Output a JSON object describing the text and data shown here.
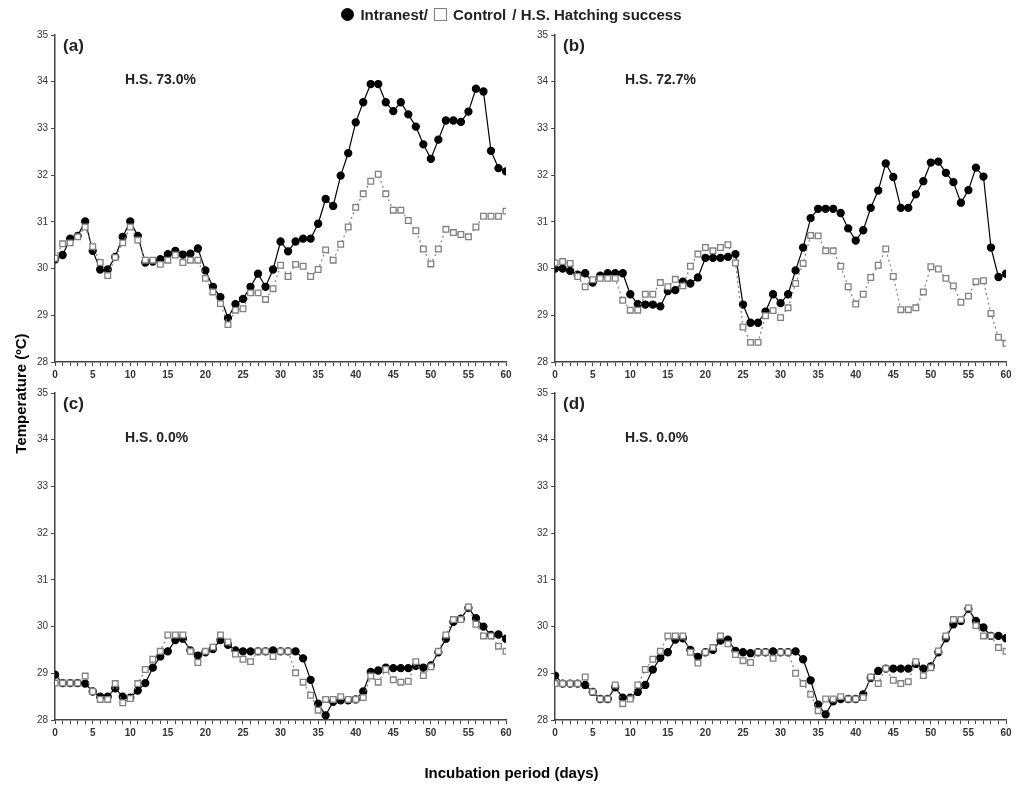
{
  "chart_data": [
    {
      "type": "line",
      "legend": "top",
      "legend_title": "/ H.S. Hatching success",
      "ylabel": "Temperature (ºC)",
      "annotations": [
        "(a)",
        "H.S. 73.0%"
      ],
      "xlim": [
        0,
        60
      ],
      "ylim": [
        28,
        35
      ],
      "yticks": [
        28,
        29,
        30,
        31,
        32,
        33,
        34,
        35
      ],
      "xticks": [
        0,
        {
          "value": 1,
          "label": null
        },
        {
          "value": 2,
          "label": null
        },
        {
          "value": 3,
          "label": null
        },
        {
          "value": 4,
          "label": null
        },
        5,
        {
          "value": 6,
          "label": null
        },
        {
          "value": 7,
          "label": null
        },
        {
          "value": 8,
          "label": null
        },
        {
          "value": 9,
          "label": null
        },
        10,
        {
          "value": 11,
          "label": null
        },
        {
          "value": 12,
          "label": null
        },
        {
          "value": 13,
          "label": null
        },
        {
          "value": 14,
          "label": null
        },
        15,
        {
          "value": 16,
          "label": null
        },
        {
          "value": 17,
          "label": null
        },
        {
          "value": 18,
          "label": null
        },
        {
          "value": 19,
          "label": null
        },
        20,
        {
          "value": 21,
          "label": null
        },
        {
          "value": 22,
          "label": null
        },
        {
          "value": 23,
          "label": null
        },
        {
          "value": 24,
          "label": null
        },
        25,
        {
          "value": 26,
          "label": null
        },
        {
          "value": 27,
          "label": null
        },
        {
          "value": 28,
          "label": null
        },
        {
          "value": 29,
          "label": null
        },
        30,
        {
          "value": 31,
          "label": null
        },
        {
          "value": 32,
          "label": null
        },
        {
          "value": 33,
          "label": null
        },
        {
          "value": 34,
          "label": null
        },
        35,
        {
          "value": 36,
          "label": null
        },
        {
          "value": 37,
          "label": null
        },
        {
          "value": 38,
          "label": null
        },
        {
          "value": 39,
          "label": null
        },
        40,
        {
          "value": 41,
          "label": null
        },
        {
          "value": 42,
          "label": null
        },
        {
          "value": 43,
          "label": null
        },
        {
          "value": 44,
          "label": null
        },
        45,
        {
          "value": 46,
          "label": null
        },
        {
          "value": 47,
          "label": null
        },
        {
          "value": 48,
          "label": null
        },
        {
          "value": 49,
          "label": null
        },
        50,
        {
          "value": 51,
          "label": null
        },
        {
          "value": 52,
          "label": null
        },
        {
          "value": 53,
          "label": null
        },
        {
          "value": 54,
          "label": null
        },
        55,
        {
          "value": 56,
          "label": null
        },
        {
          "value": 57,
          "label": null
        },
        {
          "value": 58,
          "label": null
        },
        {
          "value": 59,
          "label": null
        },
        60
      ],
      "x": [
        0,
        1,
        2,
        3,
        4,
        5,
        6,
        7,
        8,
        9,
        10,
        11,
        12,
        13,
        14,
        15,
        16,
        17,
        18,
        19,
        20,
        21,
        22,
        23,
        24,
        25,
        26,
        27,
        28,
        29,
        30,
        31,
        32,
        33,
        34,
        35,
        36,
        37,
        38,
        39,
        40,
        41,
        42,
        43,
        44,
        45,
        46,
        47,
        48,
        49,
        50,
        51,
        52,
        53,
        54,
        55,
        56,
        57,
        58,
        59,
        60
      ],
      "series": [
        {
          "name": "Intranest/",
          "color": "#000000",
          "marker": "circle",
          "line_style": "solid",
          "values": [
            30.2,
            30.29,
            30.64,
            30.7,
            31.01,
            30.38,
            29.98,
            29.98,
            30.25,
            30.68,
            31.01,
            30.7,
            30.13,
            30.15,
            30.2,
            30.31,
            30.38,
            30.3,
            30.32,
            30.43,
            29.96,
            29.61,
            29.39,
            28.94,
            29.24,
            29.35,
            29.61,
            29.89,
            29.61,
            29.98,
            30.58,
            30.37,
            30.58,
            30.64,
            30.64,
            30.96,
            31.49,
            31.34,
            31.99,
            32.47,
            33.13,
            33.56,
            33.95,
            33.95,
            33.56,
            33.37,
            33.56,
            33.3,
            33.04,
            32.66,
            32.35,
            32.76,
            33.17,
            33.17,
            33.14,
            33.36,
            33.85,
            33.79,
            32.52,
            32.15,
            32.08
          ]
        },
        {
          "name": "Control",
          "color": "#808080",
          "marker": "square",
          "line_style": "dotted",
          "values": [
            30.22,
            30.53,
            30.55,
            30.68,
            30.89,
            30.47,
            30.13,
            29.85,
            30.24,
            30.55,
            30.89,
            30.61,
            30.18,
            30.18,
            30.09,
            30.18,
            30.29,
            30.13,
            30.18,
            30.18,
            29.79,
            29.5,
            29.25,
            28.8,
            29.11,
            29.14,
            29.48,
            29.48,
            29.34,
            29.57,
            30.07,
            29.83,
            30.09,
            30.05,
            29.83,
            29.98,
            30.4,
            30.18,
            30.52,
            30.89,
            31.31,
            31.6,
            31.87,
            32.02,
            31.6,
            31.25,
            31.25,
            31.03,
            30.81,
            30.42,
            30.1,
            30.42,
            30.84,
            30.77,
            30.73,
            30.68,
            30.89,
            31.12,
            31.12,
            31.12,
            31.23
          ]
        }
      ]
    },
    {
      "type": "line",
      "annotations": [
        "(b)",
        "H.S. 72.7%"
      ],
      "xlim": [
        0,
        60
      ],
      "ylim": [
        28,
        35
      ],
      "yticks": [
        28,
        29,
        30,
        31,
        32,
        33,
        34,
        35
      ],
      "xticks": [
        0,
        {
          "value": 1,
          "label": null
        },
        {
          "value": 2,
          "label": null
        },
        {
          "value": 3,
          "label": null
        },
        {
          "value": 4,
          "label": null
        },
        5,
        {
          "value": 6,
          "label": null
        },
        {
          "value": 7,
          "label": null
        },
        {
          "value": 8,
          "label": null
        },
        {
          "value": 9,
          "label": null
        },
        10,
        {
          "value": 11,
          "label": null
        },
        {
          "value": 12,
          "label": null
        },
        {
          "value": 13,
          "label": null
        },
        {
          "value": 14,
          "label": null
        },
        15,
        {
          "value": 16,
          "label": null
        },
        {
          "value": 17,
          "label": null
        },
        {
          "value": 18,
          "label": null
        },
        {
          "value": 19,
          "label": null
        },
        20,
        {
          "value": 21,
          "label": null
        },
        {
          "value": 22,
          "label": null
        },
        {
          "value": 23,
          "label": null
        },
        {
          "value": 24,
          "label": null
        },
        25,
        {
          "value": 26,
          "label": null
        },
        {
          "value": 27,
          "label": null
        },
        {
          "value": 28,
          "label": null
        },
        {
          "value": 29,
          "label": null
        },
        30,
        {
          "value": 31,
          "label": null
        },
        {
          "value": 32,
          "label": null
        },
        {
          "value": 33,
          "label": null
        },
        {
          "value": 34,
          "label": null
        },
        35,
        {
          "value": 36,
          "label": null
        },
        {
          "value": 37,
          "label": null
        },
        {
          "value": 38,
          "label": null
        },
        {
          "value": 39,
          "label": null
        },
        40,
        {
          "value": 41,
          "label": null
        },
        {
          "value": 42,
          "label": null
        },
        {
          "value": 43,
          "label": null
        },
        {
          "value": 44,
          "label": null
        },
        45,
        {
          "value": 46,
          "label": null
        },
        {
          "value": 47,
          "label": null
        },
        {
          "value": 48,
          "label": null
        },
        {
          "value": 49,
          "label": null
        },
        50,
        {
          "value": 51,
          "label": null
        },
        {
          "value": 52,
          "label": null
        },
        {
          "value": 53,
          "label": null
        },
        {
          "value": 54,
          "label": null
        },
        55,
        {
          "value": 56,
          "label": null
        },
        {
          "value": 57,
          "label": null
        },
        {
          "value": 58,
          "label": null
        },
        {
          "value": 59,
          "label": null
        },
        60
      ],
      "x": [
        0,
        1,
        2,
        3,
        4,
        5,
        6,
        7,
        8,
        9,
        10,
        11,
        12,
        13,
        14,
        15,
        16,
        17,
        18,
        19,
        20,
        21,
        22,
        23,
        24,
        25,
        26,
        27,
        28,
        29,
        30,
        31,
        32,
        33,
        34,
        35,
        36,
        37,
        38,
        39,
        40,
        41,
        42,
        43,
        44,
        45,
        46,
        47,
        48,
        49,
        50,
        51,
        52,
        53,
        54,
        55,
        56,
        57,
        58,
        59,
        60
      ],
      "series": [
        {
          "color": "#000000",
          "marker": "circle",
          "line_style": "solid",
          "values": [
            30.0,
            30.0,
            29.95,
            29.87,
            29.9,
            29.7,
            29.85,
            29.9,
            29.9,
            29.9,
            29.45,
            29.24,
            29.23,
            29.23,
            29.19,
            29.52,
            29.54,
            29.72,
            29.68,
            29.81,
            30.23,
            30.23,
            30.23,
            30.25,
            30.31,
            29.23,
            28.84,
            28.84,
            29.08,
            29.45,
            29.26,
            29.45,
            29.96,
            30.45,
            31.08,
            31.28,
            31.28,
            31.28,
            31.19,
            30.86,
            30.6,
            30.82,
            31.3,
            31.67,
            32.25,
            31.96,
            31.3,
            31.3,
            31.59,
            31.87,
            32.27,
            32.29,
            32.05,
            31.85,
            31.41,
            31.68,
            32.16,
            31.97,
            30.45,
            29.82,
            29.89
          ]
        },
        {
          "color": "#808080",
          "marker": "square",
          "line_style": "dotted",
          "values": [
            30.12,
            30.15,
            30.11,
            29.83,
            29.61,
            29.76,
            29.79,
            29.79,
            29.79,
            29.32,
            29.11,
            29.11,
            29.45,
            29.45,
            29.7,
            29.61,
            29.77,
            29.63,
            30.05,
            30.31,
            30.45,
            30.38,
            30.45,
            30.51,
            30.12,
            28.75,
            28.42,
            28.42,
            28.99,
            29.1,
            28.95,
            29.16,
            29.68,
            30.11,
            30.71,
            30.7,
            30.38,
            30.38,
            30.05,
            29.61,
            29.24,
            29.45,
            29.81,
            30.07,
            30.42,
            29.83,
            29.12,
            29.12,
            29.16,
            29.5,
            30.04,
            29.99,
            29.79,
            29.63,
            29.28,
            29.41,
            29.72,
            29.74,
            29.04,
            28.53,
            28.4
          ]
        }
      ]
    },
    {
      "type": "line",
      "xlabel": "Incubation period (days)",
      "annotations": [
        "(c)",
        "H.S. 0.0%"
      ],
      "xlim": [
        0,
        60
      ],
      "ylim": [
        28,
        35
      ],
      "yticks": [
        28,
        29,
        30,
        31,
        32,
        33,
        34,
        35
      ],
      "xticks": [
        0,
        {
          "value": 1,
          "label": null
        },
        {
          "value": 2,
          "label": null
        },
        {
          "value": 3,
          "label": null
        },
        {
          "value": 4,
          "label": null
        },
        5,
        {
          "value": 6,
          "label": null
        },
        {
          "value": 7,
          "label": null
        },
        {
          "value": 8,
          "label": null
        },
        {
          "value": 9,
          "label": null
        },
        10,
        {
          "value": 11,
          "label": null
        },
        {
          "value": 12,
          "label": null
        },
        {
          "value": 13,
          "label": null
        },
        {
          "value": 14,
          "label": null
        },
        15,
        {
          "value": 16,
          "label": null
        },
        {
          "value": 17,
          "label": null
        },
        {
          "value": 18,
          "label": null
        },
        {
          "value": 19,
          "label": null
        },
        20,
        {
          "value": 21,
          "label": null
        },
        {
          "value": 22,
          "label": null
        },
        {
          "value": 23,
          "label": null
        },
        {
          "value": 24,
          "label": null
        },
        25,
        {
          "value": 26,
          "label": null
        },
        {
          "value": 27,
          "label": null
        },
        {
          "value": 28,
          "label": null
        },
        {
          "value": 29,
          "label": null
        },
        30,
        {
          "value": 31,
          "label": null
        },
        {
          "value": 32,
          "label": null
        },
        {
          "value": 33,
          "label": null
        },
        {
          "value": 34,
          "label": null
        },
        35,
        {
          "value": 36,
          "label": null
        },
        {
          "value": 37,
          "label": null
        },
        {
          "value": 38,
          "label": null
        },
        {
          "value": 39,
          "label": null
        },
        40,
        {
          "value": 41,
          "label": null
        },
        {
          "value": 42,
          "label": null
        },
        {
          "value": 43,
          "label": null
        },
        {
          "value": 44,
          "label": null
        },
        45,
        {
          "value": 46,
          "label": null
        },
        {
          "value": 47,
          "label": null
        },
        {
          "value": 48,
          "label": null
        },
        {
          "value": 49,
          "label": null
        },
        50,
        {
          "value": 51,
          "label": null
        },
        {
          "value": 52,
          "label": null
        },
        {
          "value": 53,
          "label": null
        },
        {
          "value": 54,
          "label": null
        },
        55,
        {
          "value": 56,
          "label": null
        },
        {
          "value": 57,
          "label": null
        },
        {
          "value": 58,
          "label": null
        },
        {
          "value": 59,
          "label": null
        },
        60
      ],
      "x": [
        0,
        1,
        2,
        3,
        4,
        5,
        6,
        7,
        8,
        9,
        10,
        11,
        12,
        13,
        14,
        15,
        16,
        17,
        18,
        19,
        20,
        21,
        22,
        23,
        24,
        25,
        26,
        27,
        28,
        29,
        30,
        31,
        32,
        33,
        34,
        35,
        36,
        37,
        38,
        39,
        40,
        41,
        42,
        43,
        44,
        45,
        46,
        47,
        48,
        49,
        50,
        51,
        52,
        53,
        54,
        55,
        56,
        57,
        58,
        59,
        60
      ],
      "series": [
        {
          "color": "#000000",
          "marker": "circle",
          "line_style": "solid",
          "values": [
            28.97,
            28.79,
            28.79,
            28.79,
            28.78,
            28.61,
            28.5,
            28.5,
            28.68,
            28.5,
            28.48,
            28.63,
            28.79,
            29.12,
            29.36,
            29.47,
            29.71,
            29.74,
            29.49,
            29.38,
            29.45,
            29.52,
            29.71,
            29.61,
            29.49,
            29.47,
            29.47,
            29.47,
            29.47,
            29.49,
            29.47,
            29.47,
            29.47,
            29.32,
            28.86,
            28.35,
            28.1,
            28.39,
            28.42,
            28.42,
            28.44,
            28.61,
            29.03,
            29.06,
            29.12,
            29.11,
            29.11,
            29.11,
            29.16,
            29.12,
            29.17,
            29.45,
            29.74,
            30.1,
            30.17,
            30.4,
            30.18,
            30.0,
            29.82,
            29.83,
            29.74
          ]
        },
        {
          "color": "#808080",
          "marker": "square",
          "line_style": "dotted",
          "values": [
            28.79,
            28.79,
            28.79,
            28.79,
            28.94,
            28.61,
            28.44,
            28.44,
            28.78,
            28.37,
            28.46,
            28.78,
            29.08,
            29.3,
            29.47,
            29.82,
            29.82,
            29.82,
            29.47,
            29.23,
            29.47,
            29.56,
            29.82,
            29.67,
            29.41,
            29.3,
            29.25,
            29.47,
            29.47,
            29.36,
            29.47,
            29.47,
            29.01,
            28.81,
            28.53,
            28.21,
            28.44,
            28.44,
            28.5,
            28.44,
            28.44,
            28.48,
            28.94,
            28.81,
            29.08,
            28.86,
            28.81,
            28.83,
            29.25,
            28.95,
            29.14,
            29.47,
            29.82,
            30.15,
            30.15,
            30.42,
            30.05,
            29.8,
            29.8,
            29.58,
            29.47
          ]
        }
      ]
    },
    {
      "type": "line",
      "annotations": [
        "(d)",
        "H.S. 0.0%"
      ],
      "xlim": [
        0,
        60
      ],
      "ylim": [
        28,
        35
      ],
      "yticks": [
        28,
        29,
        30,
        31,
        32,
        33,
        34,
        35
      ],
      "xticks": [
        0,
        {
          "value": 1,
          "label": null
        },
        {
          "value": 2,
          "label": null
        },
        {
          "value": 3,
          "label": null
        },
        {
          "value": 4,
          "label": null
        },
        5,
        {
          "value": 6,
          "label": null
        },
        {
          "value": 7,
          "label": null
        },
        {
          "value": 8,
          "label": null
        },
        {
          "value": 9,
          "label": null
        },
        10,
        {
          "value": 11,
          "label": null
        },
        {
          "value": 12,
          "label": null
        },
        {
          "value": 13,
          "label": null
        },
        {
          "value": 14,
          "label": null
        },
        15,
        {
          "value": 16,
          "label": null
        },
        {
          "value": 17,
          "label": null
        },
        {
          "value": 18,
          "label": null
        },
        {
          "value": 19,
          "label": null
        },
        20,
        {
          "value": 21,
          "label": null
        },
        {
          "value": 22,
          "label": null
        },
        {
          "value": 23,
          "label": null
        },
        {
          "value": 24,
          "label": null
        },
        25,
        {
          "value": 26,
          "label": null
        },
        {
          "value": 27,
          "label": null
        },
        {
          "value": 28,
          "label": null
        },
        {
          "value": 29,
          "label": null
        },
        30,
        {
          "value": 31,
          "label": null
        },
        {
          "value": 32,
          "label": null
        },
        {
          "value": 33,
          "label": null
        },
        {
          "value": 34,
          "label": null
        },
        35,
        {
          "value": 36,
          "label": null
        },
        {
          "value": 37,
          "label": null
        },
        {
          "value": 38,
          "label": null
        },
        {
          "value": 39,
          "label": null
        },
        40,
        {
          "value": 41,
          "label": null
        },
        {
          "value": 42,
          "label": null
        },
        {
          "value": 43,
          "label": null
        },
        {
          "value": 44,
          "label": null
        },
        45,
        {
          "value": 46,
          "label": null
        },
        {
          "value": 47,
          "label": null
        },
        {
          "value": 48,
          "label": null
        },
        {
          "value": 49,
          "label": null
        },
        50,
        {
          "value": 51,
          "label": null
        },
        {
          "value": 52,
          "label": null
        },
        {
          "value": 53,
          "label": null
        },
        {
          "value": 54,
          "label": null
        },
        55,
        {
          "value": 56,
          "label": null
        },
        {
          "value": 57,
          "label": null
        },
        {
          "value": 58,
          "label": null
        },
        {
          "value": 59,
          "label": null
        },
        60
      ],
      "x": [
        0,
        1,
        2,
        3,
        4,
        5,
        6,
        7,
        8,
        9,
        10,
        11,
        12,
        13,
        14,
        15,
        16,
        17,
        18,
        19,
        20,
        21,
        22,
        23,
        24,
        25,
        26,
        27,
        28,
        29,
        30,
        31,
        32,
        33,
        34,
        35,
        36,
        37,
        38,
        39,
        40,
        41,
        42,
        43,
        44,
        45,
        46,
        47,
        48,
        49,
        50,
        51,
        52,
        53,
        54,
        55,
        56,
        57,
        58,
        59,
        60
      ],
      "series": [
        {
          "color": "#000000",
          "marker": "circle",
          "line_style": "solid",
          "values": [
            28.95,
            28.78,
            28.78,
            28.78,
            28.75,
            28.6,
            28.45,
            28.45,
            28.7,
            28.48,
            28.48,
            28.6,
            28.75,
            29.08,
            29.33,
            29.45,
            29.72,
            29.75,
            29.5,
            29.35,
            29.45,
            29.5,
            29.7,
            29.72,
            29.48,
            29.45,
            29.43,
            29.45,
            29.45,
            29.47,
            29.45,
            29.45,
            29.47,
            29.3,
            28.85,
            28.33,
            28.12,
            28.4,
            28.45,
            28.45,
            28.45,
            28.55,
            28.9,
            29.05,
            29.1,
            29.1,
            29.1,
            29.1,
            29.2,
            29.1,
            29.15,
            29.45,
            29.75,
            30.05,
            30.12,
            30.38,
            30.12,
            29.98,
            29.8,
            29.8,
            29.75
          ]
        },
        {
          "color": "#808080",
          "marker": "square",
          "line_style": "dotted",
          "values": [
            28.78,
            28.78,
            28.78,
            28.78,
            28.92,
            28.6,
            28.45,
            28.45,
            28.75,
            28.35,
            28.45,
            28.75,
            29.08,
            29.3,
            29.47,
            29.8,
            29.8,
            29.8,
            29.45,
            29.22,
            29.45,
            29.55,
            29.8,
            29.63,
            29.4,
            29.27,
            29.23,
            29.45,
            29.45,
            29.32,
            29.45,
            29.45,
            29.0,
            28.78,
            28.55,
            28.2,
            28.45,
            28.45,
            28.5,
            28.45,
            28.45,
            28.48,
            28.92,
            28.78,
            29.1,
            28.85,
            28.78,
            28.82,
            29.25,
            28.95,
            29.12,
            29.48,
            29.8,
            30.15,
            30.15,
            30.4,
            30.02,
            29.8,
            29.8,
            29.55,
            29.47
          ]
        }
      ]
    }
  ]
}
